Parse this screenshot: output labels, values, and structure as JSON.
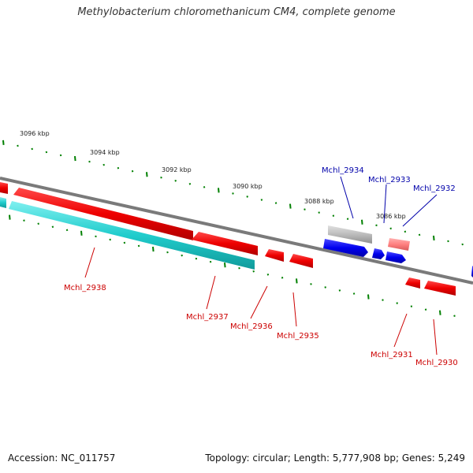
{
  "title": "Methylobacterium chloromethanicum CM4, complete genome",
  "footer": {
    "accession": "Accession: NC_011757",
    "summary": "Topology: circular; Length: 5,777,908 bp; Genes: 5,249"
  },
  "colors": {
    "backbone": "#808080",
    "tick": "#008000",
    "forward": "#ff0000",
    "reverse_red": "#ff0000",
    "reverse_cyan": "#00c8c8",
    "blue": "#0000ff",
    "gray": "#bbbbbb",
    "pink": "#ff8080",
    "label_red": "#cc0000",
    "label_blue": "#0000aa"
  },
  "scale_labels": [
    "3096 kbp",
    "3094 kbp",
    "3092 kbp",
    "3090 kbp",
    "3088 kbp",
    "3086 kbp"
  ],
  "gene_labels": {
    "top": [
      "Mchl_2934",
      "Mchl_2933",
      "Mchl_2932"
    ],
    "bottom": [
      "Mchl_2938",
      "Mchl_2937",
      "Mchl_2936",
      "Mchl_2935",
      "Mchl_2931",
      "Mchl_2930"
    ]
  }
}
